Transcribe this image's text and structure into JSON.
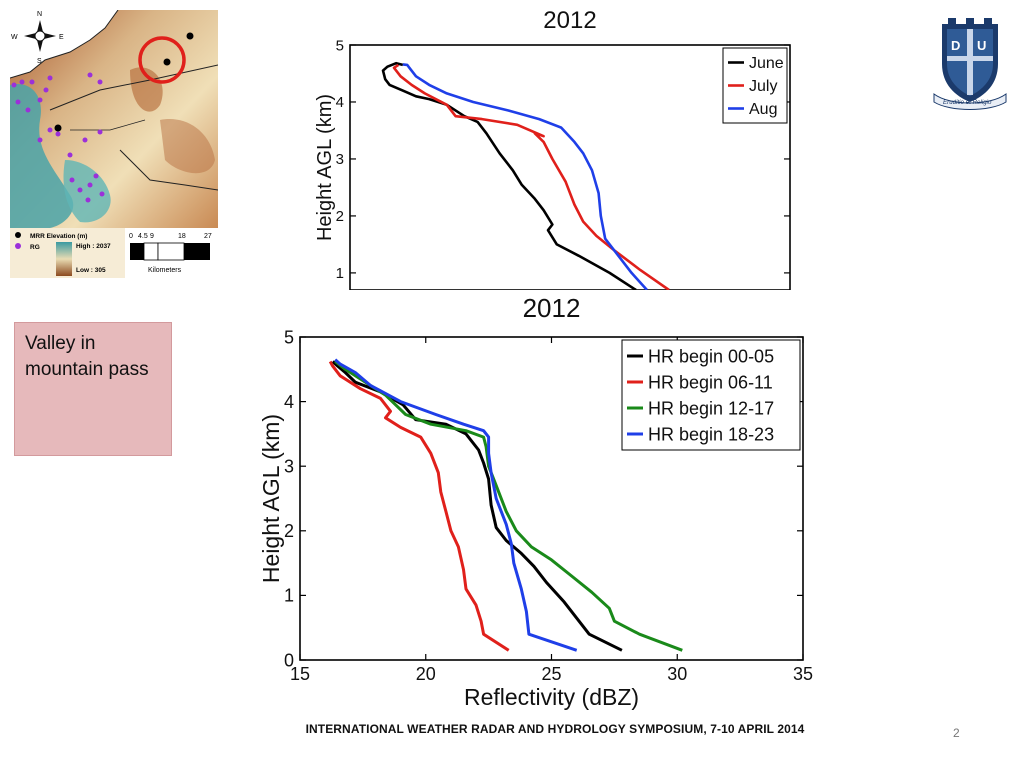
{
  "map": {
    "compass": {
      "n": "N",
      "s": "S",
      "e": "E",
      "w": "W"
    },
    "legend": {
      "mrr_label": "MRR Elevation (m)",
      "rg_label": "RG",
      "high_label": "High : 2037",
      "low_label": "Low : 305"
    },
    "scale": {
      "ticks": [
        "0",
        "4.5",
        "9",
        "18",
        "27"
      ],
      "unit": "Kilometers"
    },
    "colors": {
      "mrr": "#000000",
      "rg": "#9b30d9",
      "highlight_circle": "#e0201b"
    }
  },
  "note": {
    "text": "Valley in mountain pass"
  },
  "footer": {
    "text": "INTERNATIONAL WEATHER RADAR AND HYDROLOGY SYMPOSIUM, 7-10 APRIL 2014"
  },
  "page_number": "2",
  "crest": {
    "motto": "Eruditio et Religio",
    "letters": [
      "D",
      "U"
    ]
  },
  "chart_data": [
    {
      "type": "line",
      "title": "2012",
      "xlabel": "",
      "ylabel": "Height AGL (km)",
      "xlim": [
        15,
        35
      ],
      "ylim": [
        0.7,
        5
      ],
      "yticks": [
        "1",
        "2",
        "3",
        "4",
        "5"
      ],
      "legend_position": "top-right",
      "series": [
        {
          "name": "June",
          "color": "#000000",
          "x": [
            28.0,
            26.8,
            25.4,
            24.4,
            24.0,
            24.2,
            23.8,
            23.4,
            22.8,
            22.4,
            21.8,
            21.2,
            20.8,
            20.2,
            19.4,
            18.6,
            18.0,
            17.4,
            16.8,
            16.6,
            16.5,
            16.7,
            17.1,
            17.4
          ],
          "y": [
            0.7,
            1.0,
            1.3,
            1.5,
            1.75,
            1.85,
            2.1,
            2.3,
            2.55,
            2.8,
            3.1,
            3.45,
            3.65,
            3.75,
            3.95,
            4.05,
            4.1,
            4.2,
            4.3,
            4.4,
            4.55,
            4.62,
            4.68,
            4.65
          ]
        },
        {
          "name": "July",
          "color": "#e0201b",
          "x": [
            29.5,
            28.2,
            27.0,
            26.2,
            25.6,
            25.2,
            24.8,
            24.2,
            23.8,
            23.4,
            23.8,
            22.6,
            21.0,
            19.8,
            19.4,
            18.4,
            17.8,
            17.3,
            17.0,
            17.2
          ],
          "y": [
            0.7,
            1.05,
            1.4,
            1.65,
            1.9,
            2.2,
            2.6,
            3.0,
            3.3,
            3.45,
            3.4,
            3.6,
            3.7,
            3.75,
            3.95,
            4.15,
            4.3,
            4.45,
            4.6,
            4.65
          ]
        },
        {
          "name": "Aug",
          "color": "#1f3fe8",
          "x": [
            28.5,
            27.8,
            27.2,
            26.6,
            26.4,
            26.3,
            26.0,
            25.6,
            25.2,
            24.6,
            23.6,
            22.2,
            20.6,
            19.4,
            18.6,
            18.0,
            17.7,
            17.6,
            17.4
          ],
          "y": [
            0.7,
            1.0,
            1.3,
            1.6,
            2.0,
            2.4,
            2.8,
            3.1,
            3.3,
            3.55,
            3.7,
            3.85,
            4.0,
            4.15,
            4.3,
            4.45,
            4.6,
            4.65,
            4.66
          ]
        }
      ]
    },
    {
      "type": "line",
      "title": "2012",
      "xlabel": "Reflectivity (dBZ)",
      "ylabel": "Height AGL (km)",
      "xlim": [
        15,
        35
      ],
      "ylim": [
        0,
        5
      ],
      "xticks": [
        "15",
        "20",
        "25",
        "30",
        "35"
      ],
      "yticks": [
        "0",
        "1",
        "2",
        "3",
        "4",
        "5"
      ],
      "legend_position": "top-right",
      "series": [
        {
          "name": "HR begin 00-05",
          "color": "#000000",
          "x": [
            27.8,
            26.5,
            25.5,
            24.8,
            24.3,
            23.8,
            23.2,
            22.8,
            22.6,
            22.5,
            22.3,
            22.1,
            21.6,
            20.8,
            19.6,
            19.1,
            18.2,
            17.2,
            16.8,
            16.5,
            16.3
          ],
          "y": [
            0.15,
            0.4,
            0.9,
            1.2,
            1.45,
            1.65,
            1.85,
            2.05,
            2.4,
            2.8,
            3.05,
            3.25,
            3.5,
            3.65,
            3.72,
            3.95,
            4.15,
            4.3,
            4.45,
            4.55,
            4.62
          ]
        },
        {
          "name": "HR begin 06-11",
          "color": "#e0201b",
          "x": [
            23.3,
            22.3,
            22.2,
            22.0,
            21.6,
            21.5,
            21.3,
            21.0,
            20.8,
            20.6,
            20.5,
            20.2,
            19.8,
            19.0,
            18.4,
            18.6,
            18.2,
            17.4,
            16.6,
            16.3,
            16.2
          ],
          "y": [
            0.15,
            0.4,
            0.6,
            0.85,
            1.1,
            1.4,
            1.75,
            2.0,
            2.3,
            2.6,
            2.9,
            3.2,
            3.45,
            3.6,
            3.75,
            3.85,
            4.05,
            4.2,
            4.4,
            4.55,
            4.62
          ]
        },
        {
          "name": "HR begin 12-17",
          "color": "#1a8a1a",
          "x": [
            30.2,
            28.5,
            27.5,
            27.3,
            26.6,
            25.8,
            25.0,
            24.2,
            23.6,
            23.2,
            22.8,
            22.5,
            22.4,
            22.3,
            21.6,
            20.2,
            19.2,
            18.8,
            18.4,
            18.0,
            17.4,
            16.8,
            16.4
          ],
          "y": [
            0.15,
            0.4,
            0.6,
            0.8,
            1.05,
            1.3,
            1.55,
            1.75,
            2.0,
            2.3,
            2.7,
            3.0,
            3.3,
            3.45,
            3.55,
            3.65,
            3.8,
            3.95,
            4.1,
            4.2,
            4.35,
            4.5,
            4.62
          ]
        },
        {
          "name": "HR begin 18-23",
          "color": "#1f3fe8",
          "x": [
            26.0,
            24.1,
            24.0,
            23.8,
            23.5,
            23.4,
            23.2,
            22.8,
            22.6,
            22.5,
            22.5,
            22.3,
            21.5,
            20.4,
            19.0,
            17.8,
            17.2,
            16.6,
            16.4
          ],
          "y": [
            0.15,
            0.4,
            0.75,
            1.1,
            1.5,
            1.8,
            2.1,
            2.5,
            2.9,
            3.2,
            3.45,
            3.55,
            3.65,
            3.8,
            4.0,
            4.25,
            4.45,
            4.58,
            4.65
          ]
        }
      ]
    }
  ]
}
